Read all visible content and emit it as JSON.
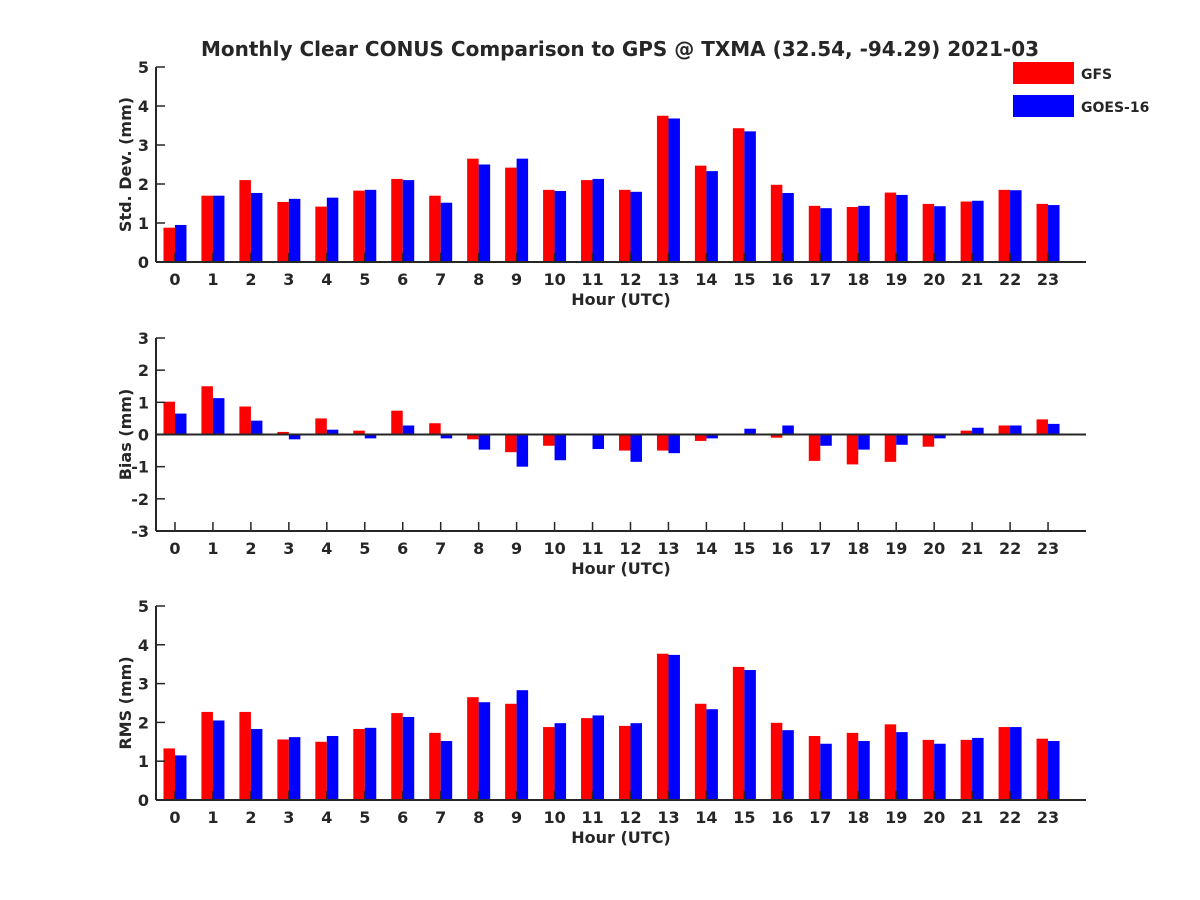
{
  "title": "Monthly Clear CONUS Comparison to GPS @ TXMA (32.54, -94.29) 2021-03",
  "legend": {
    "placement": "top-right",
    "items": [
      {
        "label": "GFS",
        "color": "#ff0000"
      },
      {
        "label": "GOES-16",
        "color": "#0000ff"
      }
    ]
  },
  "chart_data": [
    {
      "type": "bar",
      "xlabel": "Hour (UTC)",
      "ylabel": "Std. Dev. (mm)",
      "ylim": [
        0,
        5
      ],
      "yticks": [
        "0",
        "1",
        "2",
        "3",
        "4",
        "5"
      ],
      "categories": [
        "0",
        "1",
        "2",
        "3",
        "4",
        "5",
        "6",
        "7",
        "8",
        "9",
        "10",
        "11",
        "12",
        "13",
        "14",
        "15",
        "16",
        "17",
        "18",
        "19",
        "20",
        "21",
        "22",
        "23"
      ],
      "series": [
        {
          "name": "GFS",
          "color": "#ff0000",
          "values": [
            0.88,
            1.7,
            2.1,
            1.54,
            1.42,
            1.83,
            2.13,
            1.7,
            2.65,
            2.42,
            1.85,
            2.1,
            1.85,
            3.75,
            2.47,
            3.43,
            1.98,
            1.44,
            1.41,
            1.78,
            1.49,
            1.55,
            1.85,
            1.49
          ]
        },
        {
          "name": "GOES-16",
          "color": "#0000ff",
          "values": [
            0.95,
            1.7,
            1.77,
            1.62,
            1.65,
            1.85,
            2.1,
            1.52,
            2.5,
            2.65,
            1.82,
            2.13,
            1.8,
            3.68,
            2.33,
            3.35,
            1.77,
            1.38,
            1.44,
            1.72,
            1.43,
            1.57,
            1.84,
            1.46
          ]
        }
      ]
    },
    {
      "type": "bar",
      "xlabel": "Hour (UTC)",
      "ylabel": "Bias (mm)",
      "ylim": [
        -3,
        3
      ],
      "yticks": [
        "-3",
        "-2",
        "-1",
        "0",
        "1",
        "2",
        "3"
      ],
      "categories": [
        "0",
        "1",
        "2",
        "3",
        "4",
        "5",
        "6",
        "7",
        "8",
        "9",
        "10",
        "11",
        "12",
        "13",
        "14",
        "15",
        "16",
        "17",
        "18",
        "19",
        "20",
        "21",
        "22",
        "23"
      ],
      "series": [
        {
          "name": "GFS",
          "color": "#ff0000",
          "values": [
            1.02,
            1.5,
            0.87,
            0.08,
            0.5,
            0.12,
            0.74,
            0.35,
            -0.15,
            -0.55,
            -0.35,
            0.0,
            -0.5,
            -0.5,
            -0.2,
            0.0,
            -0.1,
            -0.82,
            -0.93,
            -0.85,
            -0.38,
            0.12,
            0.28,
            0.47
          ]
        },
        {
          "name": "GOES-16",
          "color": "#0000ff",
          "values": [
            0.65,
            1.13,
            0.43,
            -0.15,
            0.15,
            -0.12,
            0.28,
            -0.12,
            -0.47,
            -1.0,
            -0.8,
            -0.45,
            -0.85,
            -0.58,
            -0.12,
            0.18,
            0.28,
            -0.35,
            -0.47,
            -0.32,
            -0.12,
            0.21,
            0.28,
            0.33
          ]
        }
      ]
    },
    {
      "type": "bar",
      "xlabel": "Hour (UTC)",
      "ylabel": "RMS (mm)",
      "ylim": [
        0,
        5
      ],
      "yticks": [
        "0",
        "1",
        "2",
        "3",
        "4",
        "5"
      ],
      "categories": [
        "0",
        "1",
        "2",
        "3",
        "4",
        "5",
        "6",
        "7",
        "8",
        "9",
        "10",
        "11",
        "12",
        "13",
        "14",
        "15",
        "16",
        "17",
        "18",
        "19",
        "20",
        "21",
        "22",
        "23"
      ],
      "series": [
        {
          "name": "GFS",
          "color": "#ff0000",
          "values": [
            1.33,
            2.27,
            2.27,
            1.56,
            1.5,
            1.83,
            2.24,
            1.73,
            2.65,
            2.48,
            1.88,
            2.11,
            1.91,
            3.77,
            2.48,
            3.43,
            1.99,
            1.65,
            1.73,
            1.95,
            1.55,
            1.55,
            1.88,
            1.58
          ]
        },
        {
          "name": "GOES-16",
          "color": "#0000ff",
          "values": [
            1.15,
            2.05,
            1.83,
            1.62,
            1.65,
            1.86,
            2.14,
            1.52,
            2.52,
            2.83,
            1.98,
            2.18,
            1.98,
            3.74,
            2.34,
            3.35,
            1.8,
            1.45,
            1.52,
            1.75,
            1.45,
            1.6,
            1.88,
            1.52
          ]
        }
      ]
    }
  ]
}
